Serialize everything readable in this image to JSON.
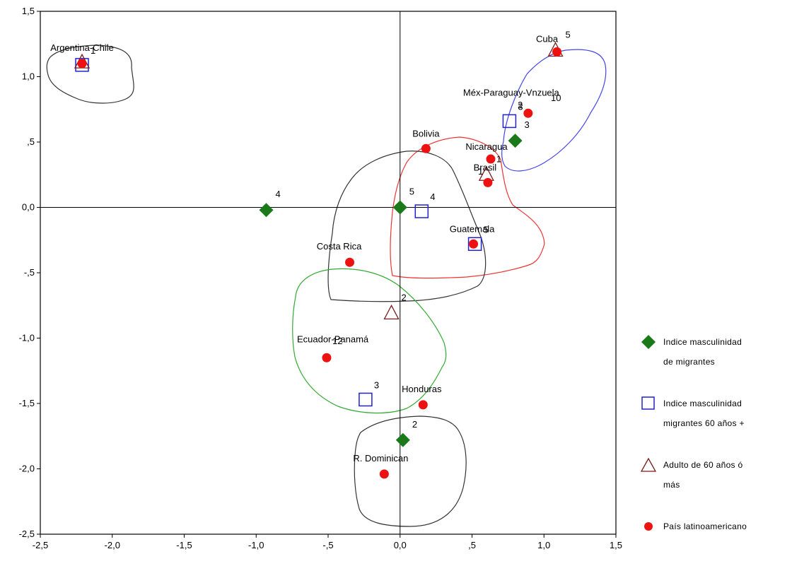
{
  "chart_data": {
    "type": "scatter",
    "title": "",
    "xlabel": "",
    "ylabel": "",
    "xlim": [
      -2.5,
      1.5
    ],
    "ylim": [
      -2.5,
      1.5
    ],
    "xticks": [
      -2.5,
      -2.0,
      -1.5,
      -1.0,
      -0.5,
      0.0,
      0.5,
      1.0,
      1.5
    ],
    "xtick_labels": [
      "-2,5",
      "-2,0",
      "-1,5",
      "-1,0",
      "-,5",
      "0,0",
      ",5",
      "1,0",
      "1,5"
    ],
    "yticks": [
      1.5,
      1.0,
      0.5,
      0.0,
      -0.5,
      -1.0,
      -1.5,
      -2.0,
      -2.5
    ],
    "ytick_labels": [
      "1,5",
      "1,0",
      ",5",
      "0,0",
      "-,5",
      "-1,0",
      "-1,5",
      "-2,0",
      "-2,5"
    ],
    "reference_lines": {
      "x": 0,
      "y": 0
    },
    "grid": false,
    "legend_position": "right",
    "series": [
      {
        "name": "Indice masculinidad de migrantes",
        "marker": "diamond",
        "color": "#1a7a1a",
        "points": [
          {
            "x": -0.93,
            "y": -0.02,
            "label": "4"
          },
          {
            "x": 0.0,
            "y": 0.0,
            "label": "5"
          },
          {
            "x": 0.8,
            "y": 0.51,
            "label": "3"
          },
          {
            "x": 0.02,
            "y": -1.78,
            "label": "2"
          }
        ]
      },
      {
        "name": "Indice masculinidad migrantes 60 años +",
        "marker": "square",
        "color": "#2222cc",
        "points": [
          {
            "x": -2.21,
            "y": 1.09,
            "label": "1"
          },
          {
            "x": 0.15,
            "y": -0.03,
            "label": "4"
          },
          {
            "x": 0.76,
            "y": 0.66,
            "label": "3"
          },
          {
            "x": 0.52,
            "y": -0.28,
            "label": "5"
          },
          {
            "x": -0.24,
            "y": -1.47,
            "label": "3"
          }
        ]
      },
      {
        "name": "Adulto de 60 años ó más",
        "marker": "triangle",
        "color": "#7a1a1a",
        "points": [
          {
            "x": -2.21,
            "y": 1.11,
            "label": ""
          },
          {
            "x": 1.08,
            "y": 1.2,
            "label": "5"
          },
          {
            "x": 0.6,
            "y": 0.25,
            "label": "1"
          },
          {
            "x": -0.06,
            "y": -0.81,
            "label": "2"
          }
        ]
      },
      {
        "name": "País latinoamericano",
        "marker": "circle",
        "color": "#ee1111",
        "points": [
          {
            "x": -2.21,
            "y": 1.1,
            "label": "Argentina-Chile"
          },
          {
            "x": 1.09,
            "y": 1.19,
            "label": "Cuba"
          },
          {
            "x": 0.89,
            "y": 0.72,
            "label": "Méx-Paraguay-Vnzuela"
          },
          {
            "x": 0.18,
            "y": 0.45,
            "label": "Bolivia"
          },
          {
            "x": 0.63,
            "y": 0.37,
            "label": "Nicaragua"
          },
          {
            "x": 0.61,
            "y": 0.19,
            "label": "Brasil"
          },
          {
            "x": 0.51,
            "y": -0.28,
            "label": "Guatemala"
          },
          {
            "x": -0.35,
            "y": -0.42,
            "label": "Costa Rica"
          },
          {
            "x": -0.51,
            "y": -1.15,
            "label": "Ecuador-Panamá"
          },
          {
            "x": 0.16,
            "y": -1.51,
            "label": "Honduras"
          },
          {
            "x": -0.11,
            "y": -2.04,
            "label": "R. Dominican"
          }
        ]
      }
    ],
    "annotations": [
      "1",
      "2",
      "10",
      "12"
    ]
  },
  "legend": {
    "items": [
      {
        "label_lines": [
          "Indice masculinidad",
          "de migrantes"
        ],
        "marker": "diamond",
        "color": "#1a7a1a"
      },
      {
        "label_lines": [
          "Indice masculinidad",
          "migrantes 60 años +"
        ],
        "marker": "square",
        "color": "#2222cc"
      },
      {
        "label_lines": [
          "Adulto de 60 años ó",
          "más"
        ],
        "marker": "triangle",
        "color": "#7a1a1a"
      },
      {
        "label_lines": [
          "País latinoamericano"
        ],
        "marker": "circle",
        "color": "#ee1111"
      }
    ]
  }
}
